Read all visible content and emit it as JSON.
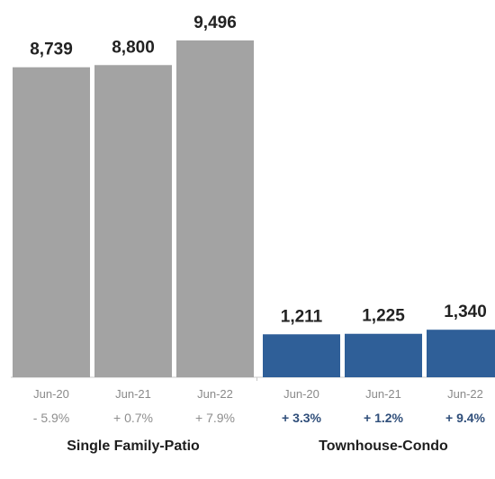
{
  "chart_data": {
    "type": "bar",
    "ylim": [
      0,
      10000
    ],
    "groups": [
      {
        "name": "Single Family-Patio",
        "color": "#a3a3a3",
        "change_color": "#8e8e8e",
        "bars": [
          {
            "x": "Jun-20",
            "value": 8739,
            "label": "8,739",
            "change": "- 5.9%"
          },
          {
            "x": "Jun-21",
            "value": 8800,
            "label": "8,800",
            "change": "+ 0.7%"
          },
          {
            "x": "Jun-22",
            "value": 9496,
            "label": "9,496",
            "change": "+ 7.9%"
          }
        ]
      },
      {
        "name": "Townhouse-Condo",
        "color": "#2f5f98",
        "change_color": "#2f4e7a",
        "bars": [
          {
            "x": "Jun-20",
            "value": 1211,
            "label": "1,211",
            "change": "+ 3.3%"
          },
          {
            "x": "Jun-21",
            "value": 1225,
            "label": "1,225",
            "change": "+ 1.2%"
          },
          {
            "x": "Jun-22",
            "value": 1340,
            "label": "1,340",
            "change": "+ 9.4%"
          }
        ]
      }
    ]
  }
}
